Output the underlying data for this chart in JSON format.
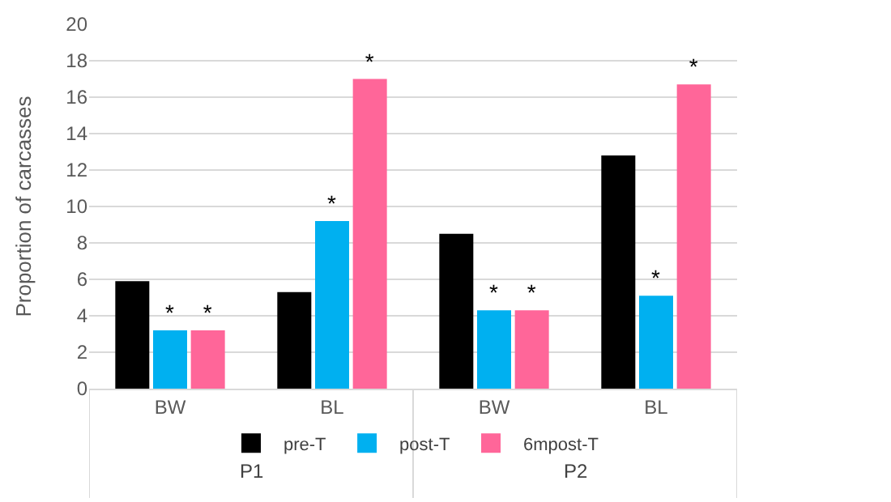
{
  "chart_data": {
    "type": "bar",
    "ylabel": "Proportion of carcasses",
    "categories": [
      "BW",
      "BL",
      "BW",
      "BL"
    ],
    "series": [
      {
        "name": "pre-T",
        "color": "#000000",
        "values": [
          5.9,
          5.3,
          8.5,
          12.8
        ],
        "value_labels": [
          null,
          null,
          null,
          null
        ]
      },
      {
        "name": "post-T",
        "color": "#00b0f0",
        "values": [
          3.2,
          9.2,
          4.3,
          5.1
        ],
        "value_labels": [
          "*",
          "*",
          "*",
          "*"
        ]
      },
      {
        "name": "6mpost-T",
        "color": "#ff6699",
        "values": [
          3.2,
          17.0,
          4.3,
          16.7
        ],
        "value_labels": [
          "*",
          "*",
          "*",
          "*"
        ]
      }
    ],
    "annotations": [
      "P1",
      "P2"
    ],
    "ylim": [
      0,
      20
    ],
    "yticks": [
      0,
      2,
      4,
      6,
      8,
      10,
      12,
      14,
      16,
      18,
      20
    ],
    "grid": "y",
    "legend": "bottom"
  }
}
